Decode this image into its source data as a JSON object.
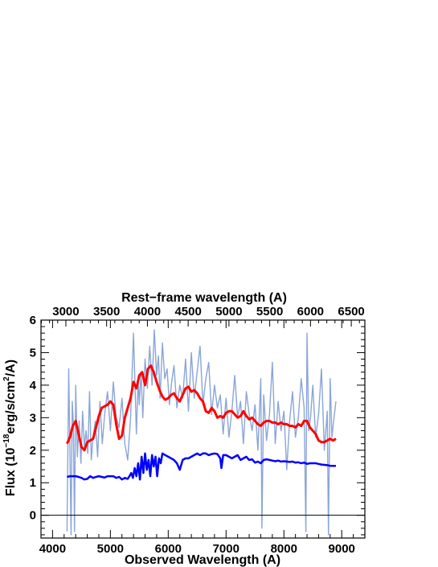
{
  "chart_data": {
    "type": "line",
    "xlabel": "Observed Wavelength (A)",
    "xlabel_top": "Rest−frame wavelength (A)",
    "ylabel_prefix": "Flux (10",
    "ylabel_exp1": "−18",
    "ylabel_mid": "erg/s/cm",
    "ylabel_exp2": "2",
    "ylabel_suffix": "/A)",
    "xlim": [
      3800,
      9400
    ],
    "ylim": [
      -0.7,
      6
    ],
    "x_ticks": [
      "4000",
      "5000",
      "6000",
      "7000",
      "8000",
      "9000"
    ],
    "y_ticks": [
      "0",
      "1",
      "2",
      "3",
      "4",
      "5",
      "6"
    ],
    "top_ticks": [
      "3000",
      "3500",
      "4000",
      "4500",
      "5000",
      "5500",
      "6000",
      "6500"
    ],
    "top_axis_redshift_factor": 1.41,
    "zero_line": true,
    "colors": {
      "spectrum": "#8aa5d8",
      "model": "#ff0000",
      "error": "#0000ff"
    },
    "series": [
      {
        "role": "observed spectrum",
        "x": [
          4250,
          4280,
          4300,
          4320,
          4340,
          4360,
          4380,
          4400,
          4430,
          4460,
          4490,
          4520,
          4550,
          4580,
          4610,
          4640,
          4670,
          4700,
          4740,
          4780,
          4820,
          4860,
          4900,
          4950,
          5000,
          5050,
          5100,
          5150,
          5200,
          5250,
          5300,
          5350,
          5400,
          5450,
          5480,
          5500,
          5530,
          5560,
          5600,
          5640,
          5680,
          5720,
          5760,
          5800,
          5830,
          5860,
          5900,
          5940,
          5980,
          6020,
          6060,
          6100,
          6150,
          6200,
          6250,
          6300,
          6350,
          6400,
          6450,
          6500,
          6550,
          6600,
          6650,
          6700,
          6750,
          6800,
          6850,
          6900,
          6950,
          7000,
          7050,
          7100,
          7150,
          7200,
          7250,
          7300,
          7350,
          7400,
          7450,
          7500,
          7550,
          7600,
          7620,
          7650,
          7700,
          7750,
          7800,
          7850,
          7900,
          7950,
          8000,
          8050,
          8100,
          8150,
          8200,
          8250,
          8300,
          8350,
          8380,
          8400,
          8430,
          8460,
          8500,
          8550,
          8600,
          8650,
          8700,
          8750,
          8770,
          8800,
          8830,
          8860,
          8900
        ],
        "y": [
          -0.5,
          4.5,
          2.0,
          -0.6,
          3.5,
          2.8,
          -0.5,
          4.0,
          1.8,
          2.9,
          1.6,
          3.2,
          2.1,
          2.6,
          1.9,
          3.8,
          1.7,
          2.4,
          2.9,
          1.8,
          3.5,
          2.2,
          3.1,
          3.8,
          2.6,
          4.1,
          3.0,
          2.7,
          3.6,
          2.2,
          1.7,
          3.0,
          5.6,
          2.5,
          4.2,
          3.4,
          4.4,
          3.0,
          4.8,
          3.9,
          5.2,
          4.0,
          5.7,
          4.3,
          4.9,
          3.6,
          5.3,
          4.2,
          4.5,
          3.4,
          4.1,
          4.6,
          3.3,
          4.0,
          3.6,
          4.8,
          3.2,
          5.0,
          3.6,
          4.4,
          5.2,
          3.4,
          4.2,
          4.7,
          3.1,
          4.0,
          3.3,
          3.7,
          2.5,
          3.6,
          2.4,
          3.2,
          4.3,
          3.0,
          3.5,
          2.2,
          3.8,
          3.1,
          2.6,
          3.4,
          2.0,
          4.2,
          -0.4,
          3.7,
          2.3,
          3.1,
          4.7,
          2.2,
          3.5,
          2.6,
          3.2,
          1.4,
          2.9,
          3.8,
          2.4,
          3.0,
          4.2,
          3.3,
          -0.5,
          5.6,
          2.6,
          3.0,
          4.0,
          2.4,
          3.1,
          4.5,
          2.0,
          3.2,
          -0.6,
          4.2,
          2.4,
          2.9,
          3.5
        ]
      },
      {
        "role": "model",
        "x": [
          4250,
          4300,
          4350,
          4400,
          4450,
          4500,
          4550,
          4600,
          4650,
          4700,
          4750,
          4800,
          4850,
          4900,
          4950,
          5000,
          5050,
          5100,
          5150,
          5200,
          5250,
          5300,
          5350,
          5400,
          5450,
          5500,
          5550,
          5600,
          5650,
          5700,
          5750,
          5800,
          5850,
          5900,
          5950,
          6000,
          6050,
          6100,
          6150,
          6200,
          6250,
          6300,
          6350,
          6400,
          6450,
          6500,
          6550,
          6600,
          6650,
          6700,
          6750,
          6800,
          6850,
          6900,
          6950,
          7000,
          7050,
          7100,
          7150,
          7200,
          7250,
          7300,
          7350,
          7400,
          7450,
          7500,
          7550,
          7600,
          7650,
          7700,
          7750,
          7800,
          7850,
          7900,
          7950,
          8000,
          8050,
          8100,
          8150,
          8200,
          8250,
          8300,
          8350,
          8400,
          8450,
          8500,
          8550,
          8600,
          8650,
          8700,
          8750,
          8800,
          8850,
          8900
        ],
        "y": [
          2.2,
          2.4,
          2.75,
          2.9,
          2.5,
          2.1,
          2.0,
          2.25,
          2.3,
          2.35,
          2.7,
          3.05,
          3.3,
          3.35,
          3.4,
          3.5,
          3.4,
          2.8,
          2.35,
          2.45,
          3.0,
          3.3,
          3.6,
          4.1,
          3.9,
          4.3,
          4.4,
          4.0,
          4.5,
          4.6,
          4.4,
          4.1,
          3.85,
          3.65,
          3.55,
          3.6,
          3.7,
          3.75,
          3.6,
          3.5,
          3.7,
          3.9,
          3.95,
          3.8,
          3.85,
          3.75,
          3.6,
          3.5,
          3.2,
          3.15,
          3.3,
          3.2,
          3.0,
          3.05,
          3.0,
          3.15,
          3.2,
          3.2,
          3.1,
          3.0,
          3.05,
          3.2,
          3.05,
          2.95,
          3.0,
          2.9,
          2.8,
          2.75,
          2.85,
          2.9,
          2.9,
          2.85,
          2.85,
          2.8,
          2.85,
          2.8,
          2.8,
          2.75,
          2.75,
          2.7,
          2.8,
          2.75,
          2.9,
          2.9,
          2.7,
          2.6,
          2.5,
          2.3,
          2.25,
          2.25,
          2.3,
          2.35,
          2.3,
          2.35
        ]
      },
      {
        "role": "error",
        "x": [
          4250,
          4300,
          4350,
          4400,
          4450,
          4500,
          4550,
          4600,
          4650,
          4700,
          4750,
          4800,
          4850,
          4900,
          4950,
          5000,
          5050,
          5100,
          5150,
          5200,
          5250,
          5300,
          5330,
          5360,
          5390,
          5420,
          5450,
          5480,
          5510,
          5540,
          5570,
          5600,
          5630,
          5660,
          5690,
          5720,
          5750,
          5780,
          5810,
          5840,
          5870,
          5900,
          5950,
          6000,
          6050,
          6100,
          6150,
          6200,
          6250,
          6300,
          6350,
          6400,
          6450,
          6500,
          6550,
          6600,
          6650,
          6700,
          6750,
          6800,
          6850,
          6900,
          6920,
          6950,
          7000,
          7050,
          7100,
          7150,
          7200,
          7250,
          7300,
          7350,
          7400,
          7450,
          7500,
          7550,
          7600,
          7650,
          7700,
          7750,
          7800,
          7850,
          7900,
          7950,
          8000,
          8050,
          8100,
          8150,
          8200,
          8250,
          8300,
          8350,
          8400,
          8450,
          8500,
          8550,
          8600,
          8650,
          8700,
          8750,
          8800,
          8850,
          8900
        ],
        "y": [
          1.18,
          1.2,
          1.2,
          1.2,
          1.18,
          1.15,
          1.1,
          1.12,
          1.2,
          1.15,
          1.18,
          1.2,
          1.18,
          1.16,
          1.2,
          1.2,
          1.2,
          1.15,
          1.18,
          1.1,
          1.15,
          1.12,
          1.2,
          1.3,
          1.15,
          1.45,
          1.2,
          1.6,
          1.1,
          1.8,
          1.3,
          1.9,
          1.4,
          1.7,
          1.2,
          1.85,
          1.5,
          1.8,
          1.2,
          1.75,
          1.6,
          1.9,
          1.85,
          1.8,
          1.75,
          1.7,
          1.6,
          1.4,
          1.7,
          1.75,
          1.75,
          1.8,
          1.85,
          1.9,
          1.85,
          1.9,
          1.9,
          1.85,
          1.88,
          1.9,
          1.88,
          1.75,
          1.45,
          1.85,
          1.85,
          1.8,
          1.75,
          1.8,
          1.85,
          1.7,
          1.75,
          1.8,
          1.7,
          1.72,
          1.62,
          1.65,
          1.6,
          1.7,
          1.72,
          1.7,
          1.68,
          1.66,
          1.68,
          1.65,
          1.66,
          1.65,
          1.64,
          1.65,
          1.62,
          1.63,
          1.6,
          1.62,
          1.58,
          1.6,
          1.6,
          1.6,
          1.58,
          1.56,
          1.55,
          1.54,
          1.52,
          1.52,
          1.52
        ]
      }
    ]
  }
}
